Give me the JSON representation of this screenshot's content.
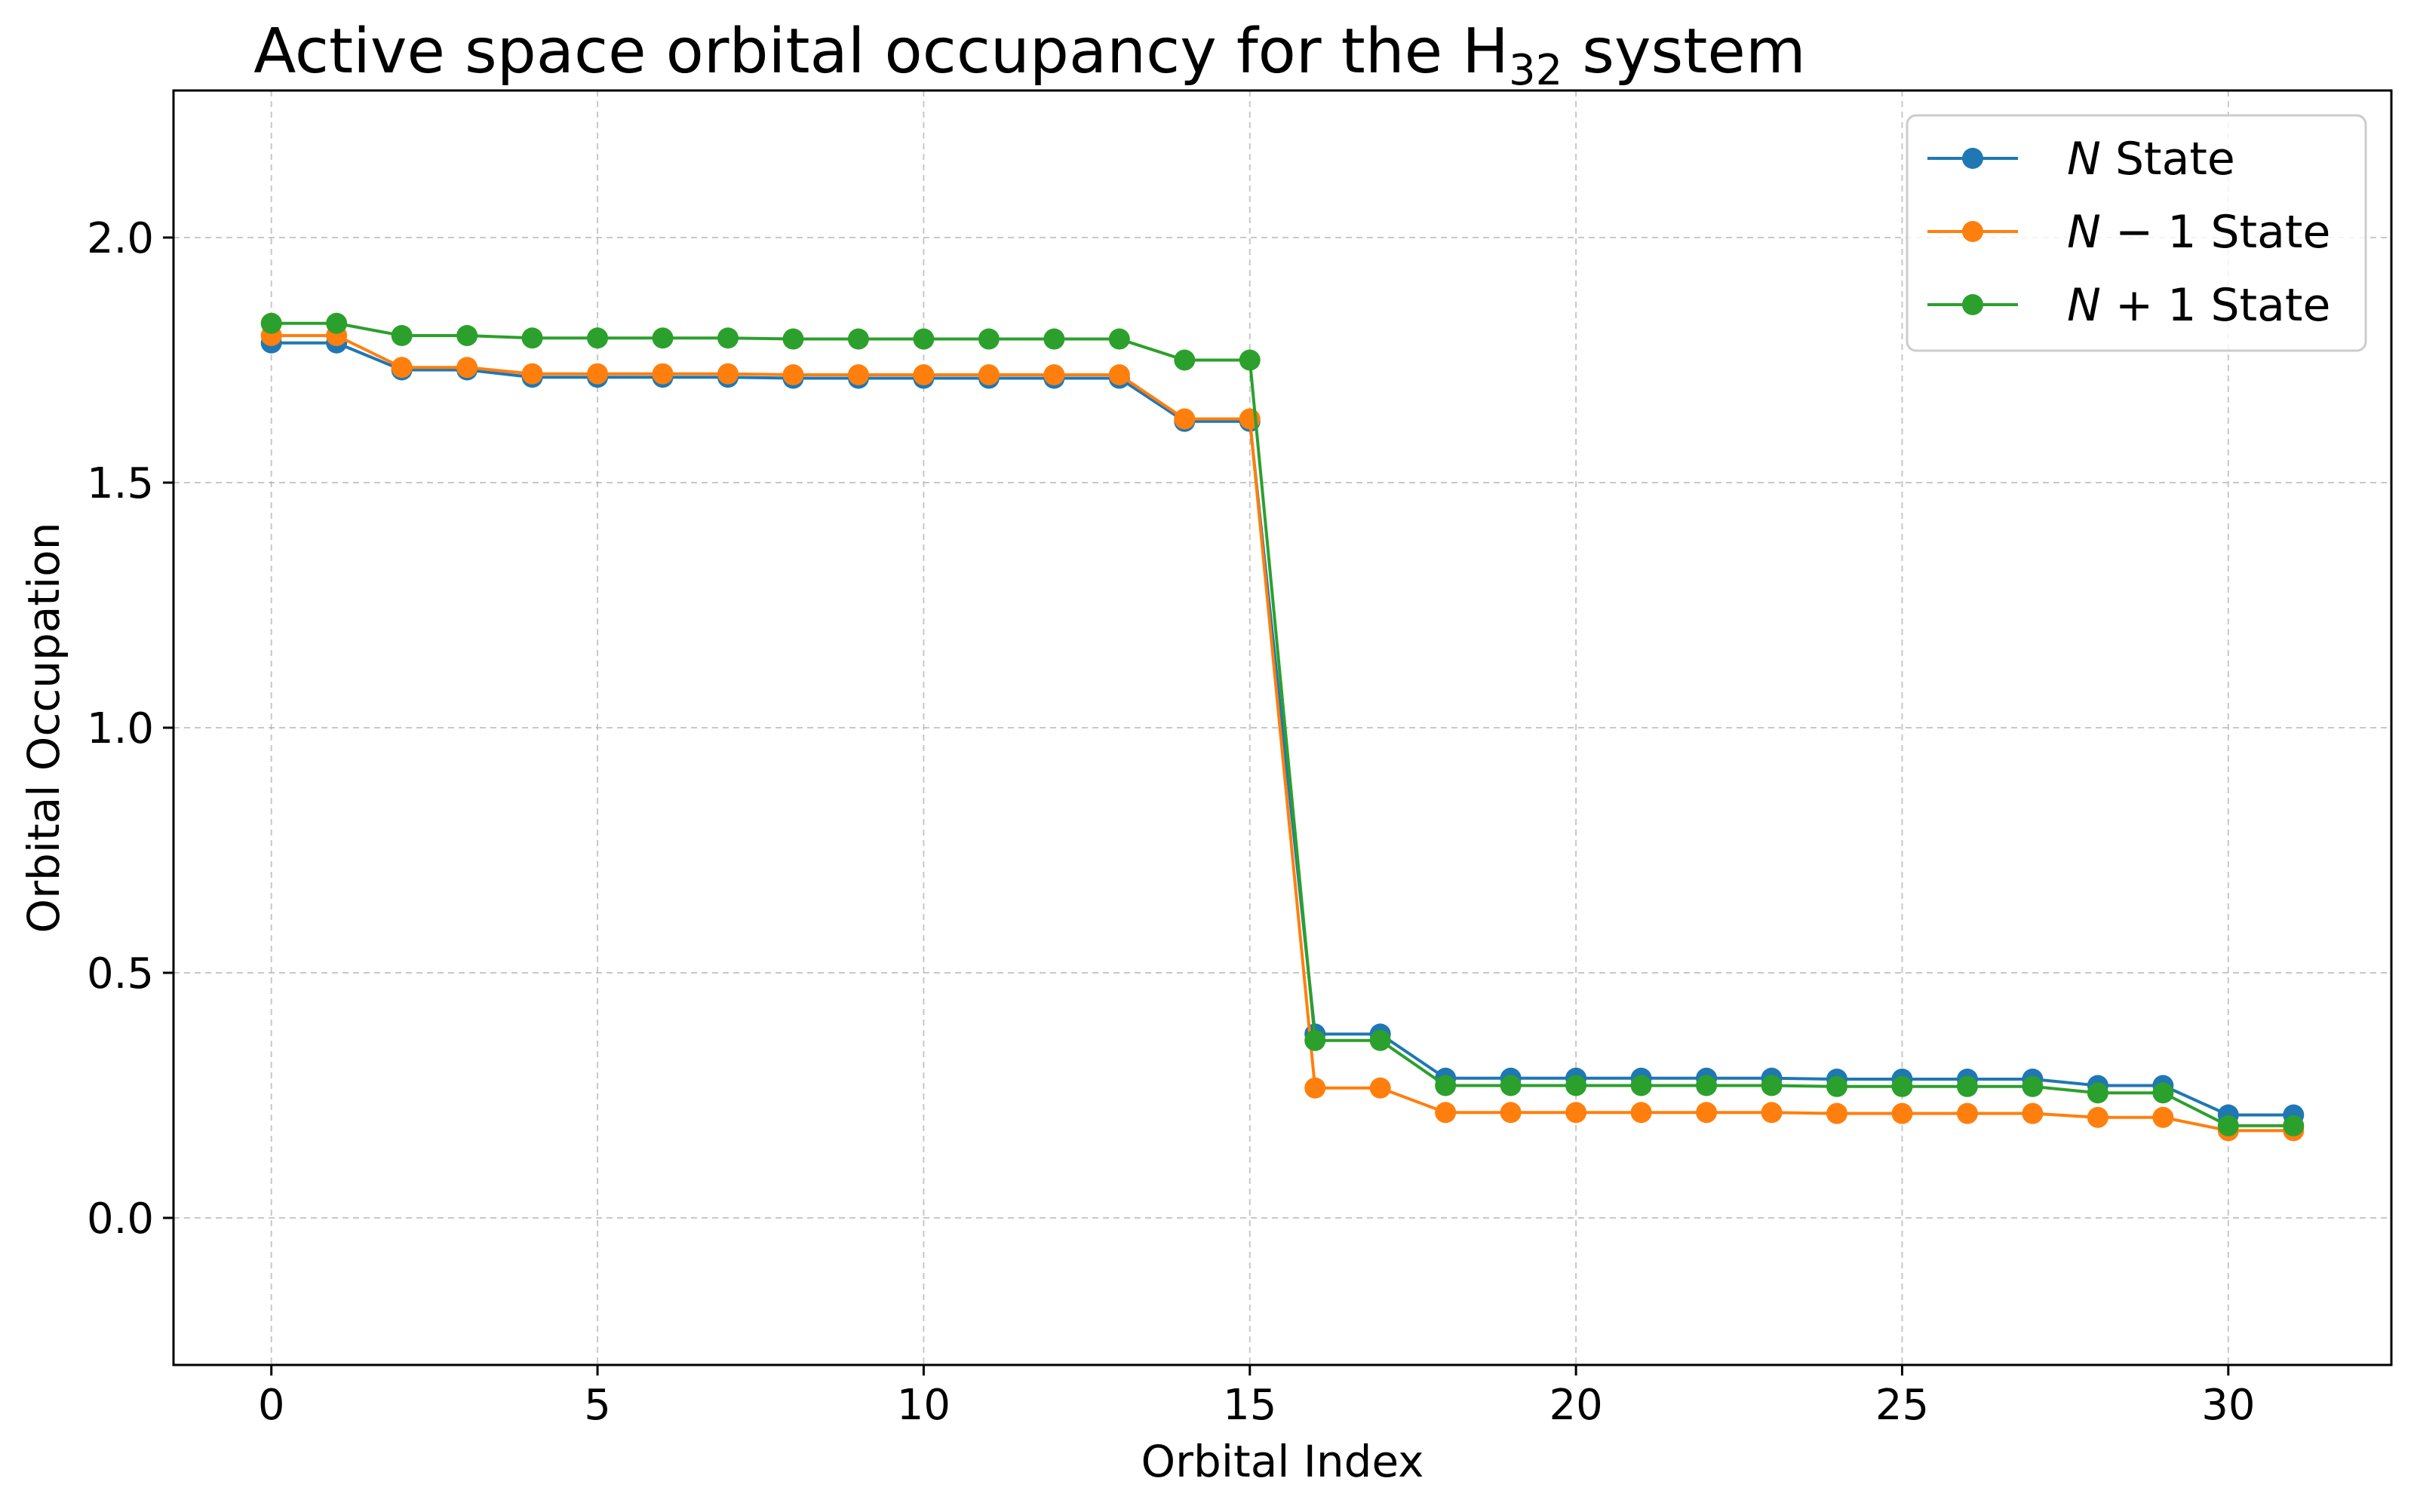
{
  "chart_data": {
    "type": "line",
    "title": {
      "main": "Active space orbital occupancy for the H",
      "sub": "32",
      "suffix": " system"
    },
    "xlabel": "Orbital Index",
    "ylabel": "Orbital Occupation",
    "xlim": [
      -1.5,
      32.5
    ],
    "ylim": [
      -0.3,
      2.3
    ],
    "xticks": [
      0,
      5,
      10,
      15,
      20,
      25,
      30
    ],
    "xtick_labels": [
      "0",
      "5",
      "10",
      "15",
      "20",
      "25",
      "30"
    ],
    "yticks": [
      0.0,
      0.5,
      1.0,
      1.5,
      2.0
    ],
    "ytick_labels": [
      "0.0",
      "0.5",
      "1.0",
      "1.5",
      "2.0"
    ],
    "grid": true,
    "legend_position": "top-right",
    "x": [
      0,
      1,
      2,
      3,
      4,
      5,
      6,
      7,
      8,
      9,
      10,
      11,
      12,
      13,
      14,
      15,
      16,
      17,
      18,
      19,
      20,
      21,
      22,
      23,
      24,
      25,
      26,
      27,
      28,
      29,
      30,
      31
    ],
    "series": [
      {
        "name": "N State",
        "legend": {
          "italic": "N",
          "rest": " State"
        },
        "color": "#1f77b4",
        "values": [
          1.785,
          1.785,
          1.73,
          1.73,
          1.715,
          1.715,
          1.715,
          1.715,
          1.713,
          1.713,
          1.713,
          1.713,
          1.713,
          1.713,
          1.625,
          1.625,
          0.375,
          0.375,
          0.285,
          0.285,
          0.285,
          0.285,
          0.285,
          0.285,
          0.283,
          0.283,
          0.283,
          0.283,
          0.27,
          0.27,
          0.21,
          0.21
        ]
      },
      {
        "name": "N − 1 State",
        "legend": {
          "italic": "N",
          "rest": " − 1 State"
        },
        "color": "#ff7f0e",
        "values": [
          1.8,
          1.8,
          1.735,
          1.735,
          1.722,
          1.722,
          1.722,
          1.722,
          1.72,
          1.72,
          1.72,
          1.72,
          1.72,
          1.72,
          1.63,
          1.63,
          0.265,
          0.265,
          0.215,
          0.215,
          0.215,
          0.215,
          0.215,
          0.215,
          0.213,
          0.213,
          0.213,
          0.213,
          0.205,
          0.205,
          0.178,
          0.178
        ]
      },
      {
        "name": "N + 1 State",
        "legend": {
          "italic": "N",
          "rest": " + 1 State"
        },
        "color": "#2ca02c",
        "values": [
          1.825,
          1.825,
          1.8,
          1.8,
          1.795,
          1.795,
          1.795,
          1.795,
          1.793,
          1.793,
          1.793,
          1.793,
          1.793,
          1.793,
          1.75,
          1.75,
          0.362,
          0.362,
          0.27,
          0.27,
          0.27,
          0.27,
          0.27,
          0.27,
          0.268,
          0.268,
          0.268,
          0.268,
          0.255,
          0.255,
          0.188,
          0.188
        ]
      }
    ]
  }
}
